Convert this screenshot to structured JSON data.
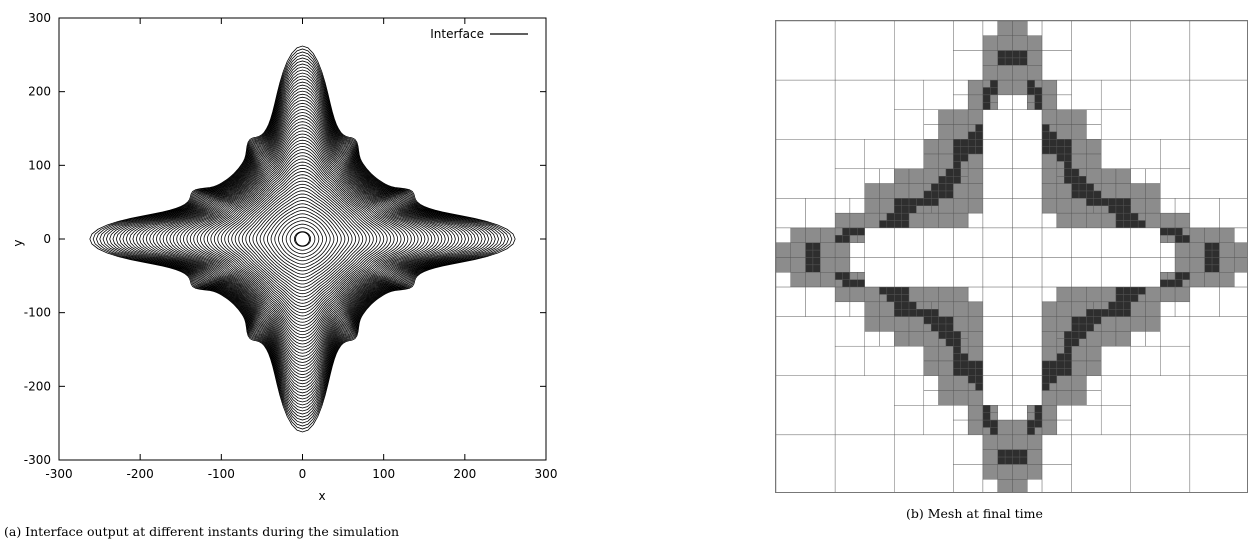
{
  "chart_data": [
    {
      "type": "line",
      "xlabel": "x",
      "ylabel": "y",
      "xlim": [
        -300,
        300
      ],
      "ylim": [
        -300,
        300
      ],
      "xticks": [
        "-300",
        "-200",
        "-100",
        "0",
        "100",
        "200",
        "300"
      ],
      "yticks": [
        "-300",
        "-200",
        "-100",
        "0",
        "100",
        "200",
        "300"
      ],
      "legend": {
        "label": "Interface",
        "position": "top-right"
      },
      "grid": false,
      "series": [
        {
          "name": "Interface",
          "description_values": {
            "contour_count": 60,
            "final_tip_extent": 262,
            "initial_radius": 10,
            "arm_half_width_at_root": 65
          }
        }
      ],
      "caption": "(a) Interface output at different instants during the simulation"
    },
    {
      "type": "heatmap",
      "caption": "(b) Mesh at final time"
    }
  ],
  "colors": {
    "line": "#000000",
    "mesh_line": "#555555",
    "mesh_fine": "#8c8c8c",
    "mesh_finest": "#2e2e2e"
  }
}
